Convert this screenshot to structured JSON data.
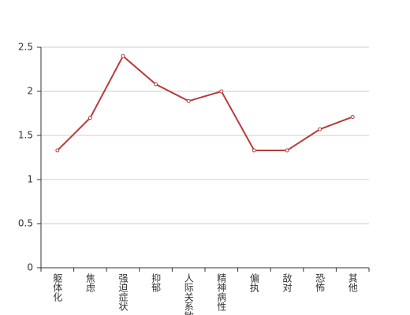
{
  "chart_data": {
    "type": "line",
    "categories": [
      "躯体化",
      "焦虑",
      "强迫症状",
      "抑郁",
      "人际关系敏感",
      "精神病性",
      "偏执",
      "敌对",
      "恐怖",
      "其他"
    ],
    "values": [
      1.33,
      1.7,
      2.4,
      2.08,
      1.89,
      2.0,
      1.33,
      1.33,
      1.57,
      1.71
    ],
    "color": "#b83b3b",
    "ylim": [
      0,
      2.5
    ],
    "yticks": [
      0,
      0.5,
      1,
      1.5,
      2,
      2.5
    ],
    "grid": true
  }
}
